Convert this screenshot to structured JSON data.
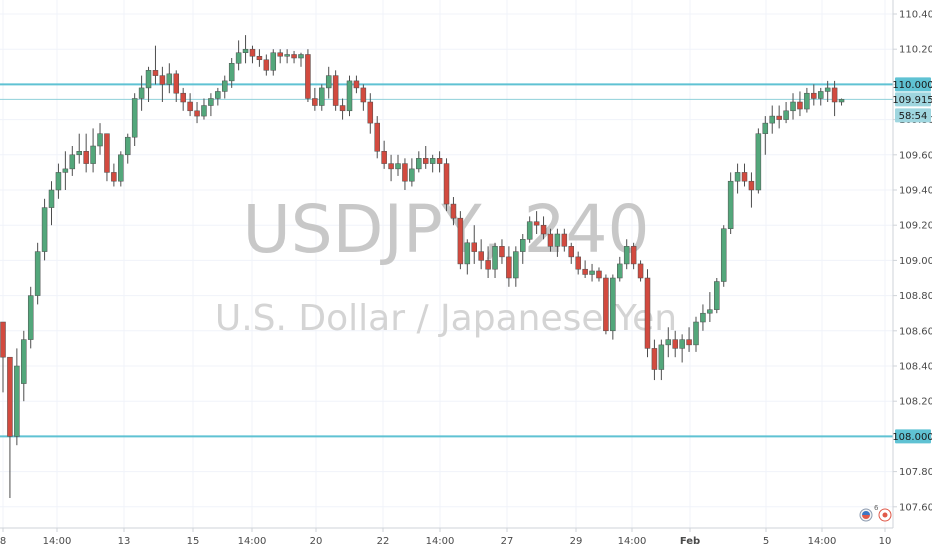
{
  "chart_data": {
    "type": "candlestick",
    "symbol_watermark": "USDJPY, 240",
    "description_watermark": "U.S. Dollar / Japanese Yen",
    "y_axis": {
      "ylim": [
        107.55,
        110.42
      ],
      "ticks": [
        "110.400",
        "110.200",
        "110.000",
        "109.800",
        "109.600",
        "109.400",
        "109.200",
        "109.000",
        "108.800",
        "108.600",
        "108.400",
        "108.200",
        "107.800",
        "107.600"
      ]
    },
    "x_axis": {
      "ticks": [
        {
          "label": "8",
          "bold": false
        },
        {
          "label": "14:00",
          "bold": false
        },
        {
          "label": "13",
          "bold": false
        },
        {
          "label": "15",
          "bold": false
        },
        {
          "label": "14:00",
          "bold": false
        },
        {
          "label": "20",
          "bold": false
        },
        {
          "label": "22",
          "bold": false
        },
        {
          "label": "14:00",
          "bold": false
        },
        {
          "label": "27",
          "bold": false
        },
        {
          "label": "29",
          "bold": false
        },
        {
          "label": "14:00",
          "bold": false
        },
        {
          "label": "Feb",
          "bold": true
        },
        {
          "label": "5",
          "bold": false
        },
        {
          "label": "14:00",
          "bold": false
        },
        {
          "label": "10",
          "bold": false
        }
      ]
    },
    "horizontal_levels": [
      {
        "value": 110.0,
        "label": "110.000",
        "color": "#5fc2d3"
      },
      {
        "value": 108.0,
        "label": "108.000",
        "color": "#5fc2d3"
      }
    ],
    "current_price": {
      "value": 109.915,
      "label": "109.915",
      "countdown": "58:54"
    },
    "colors": {
      "up": "#53a77b",
      "down": "#d24a3f",
      "wick": "#4d4d4d",
      "level": "#5fc2d3"
    },
    "candles": [
      [
        108.65,
        108.65,
        108.25,
        108.45
      ],
      [
        108.45,
        108.45,
        107.65,
        108.0
      ],
      [
        108.0,
        108.5,
        107.95,
        108.4
      ],
      [
        108.3,
        108.6,
        108.2,
        108.55
      ],
      [
        108.55,
        108.85,
        108.5,
        108.8
      ],
      [
        108.8,
        109.1,
        108.75,
        109.05
      ],
      [
        109.05,
        109.35,
        109.0,
        109.3
      ],
      [
        109.3,
        109.45,
        109.2,
        109.4
      ],
      [
        109.4,
        109.55,
        109.35,
        109.5
      ],
      [
        109.5,
        109.62,
        109.4,
        109.52
      ],
      [
        109.52,
        109.65,
        109.48,
        109.6
      ],
      [
        109.6,
        109.72,
        109.55,
        109.62
      ],
      [
        109.62,
        109.72,
        109.5,
        109.55
      ],
      [
        109.55,
        109.75,
        109.5,
        109.65
      ],
      [
        109.65,
        109.78,
        109.6,
        109.72
      ],
      [
        109.72,
        109.72,
        109.45,
        109.5
      ],
      [
        109.5,
        109.55,
        109.42,
        109.45
      ],
      [
        109.45,
        109.62,
        109.42,
        109.6
      ],
      [
        109.6,
        109.72,
        109.55,
        109.7
      ],
      [
        109.7,
        109.95,
        109.65,
        109.92
      ],
      [
        109.92,
        110.05,
        109.85,
        109.98
      ],
      [
        109.98,
        110.1,
        109.9,
        110.08
      ],
      [
        110.08,
        110.22,
        110.0,
        110.05
      ],
      [
        110.05,
        110.1,
        109.9,
        110.0
      ],
      [
        110.0,
        110.12,
        109.95,
        110.06
      ],
      [
        110.06,
        110.08,
        109.9,
        109.95
      ],
      [
        109.95,
        109.98,
        109.85,
        109.9
      ],
      [
        109.9,
        109.95,
        109.82,
        109.85
      ],
      [
        109.85,
        109.9,
        109.78,
        109.82
      ],
      [
        109.82,
        109.92,
        109.8,
        109.88
      ],
      [
        109.88,
        109.95,
        109.82,
        109.92
      ],
      [
        109.92,
        109.98,
        109.88,
        109.96
      ],
      [
        109.96,
        110.05,
        109.92,
        110.02
      ],
      [
        110.02,
        110.15,
        109.98,
        110.12
      ],
      [
        110.12,
        110.25,
        110.08,
        110.18
      ],
      [
        110.18,
        110.28,
        110.12,
        110.2
      ],
      [
        110.2,
        110.22,
        110.12,
        110.16
      ],
      [
        110.16,
        110.2,
        110.1,
        110.14
      ],
      [
        110.14,
        110.17,
        110.05,
        110.08
      ],
      [
        110.08,
        110.2,
        110.05,
        110.18
      ],
      [
        110.18,
        110.2,
        110.12,
        110.16
      ],
      [
        110.16,
        110.2,
        110.12,
        110.17
      ],
      [
        110.17,
        110.19,
        110.12,
        110.15
      ],
      [
        110.15,
        110.18,
        110.1,
        110.17
      ],
      [
        110.17,
        110.2,
        109.9,
        109.92
      ],
      [
        109.92,
        109.98,
        109.85,
        109.88
      ],
      [
        109.88,
        110.0,
        109.85,
        109.98
      ],
      [
        109.98,
        110.1,
        109.92,
        110.05
      ],
      [
        110.05,
        110.08,
        109.85,
        109.88
      ],
      [
        109.88,
        109.92,
        109.8,
        109.85
      ],
      [
        109.85,
        110.05,
        109.82,
        110.02
      ],
      [
        110.02,
        110.05,
        109.95,
        109.98
      ],
      [
        109.98,
        110.0,
        109.85,
        109.9
      ],
      [
        109.9,
        109.95,
        109.72,
        109.78
      ],
      [
        109.78,
        109.82,
        109.58,
        109.62
      ],
      [
        109.62,
        109.68,
        109.52,
        109.55
      ],
      [
        109.55,
        109.6,
        109.45,
        109.52
      ],
      [
        109.52,
        109.6,
        109.48,
        109.55
      ],
      [
        109.55,
        109.58,
        109.4,
        109.45
      ],
      [
        109.45,
        109.58,
        109.42,
        109.52
      ],
      [
        109.52,
        109.62,
        109.5,
        109.58
      ],
      [
        109.58,
        109.65,
        109.52,
        109.55
      ],
      [
        109.55,
        109.6,
        109.5,
        109.58
      ],
      [
        109.58,
        109.62,
        109.5,
        109.55
      ],
      [
        109.55,
        109.58,
        109.28,
        109.32
      ],
      [
        109.32,
        109.36,
        109.2,
        109.24
      ],
      [
        109.24,
        109.28,
        108.95,
        108.98
      ],
      [
        108.98,
        109.12,
        108.92,
        109.1
      ],
      [
        109.1,
        109.2,
        108.98,
        109.05
      ],
      [
        109.05,
        109.12,
        108.95,
        109.0
      ],
      [
        109.0,
        109.08,
        108.9,
        108.95
      ],
      [
        108.95,
        109.1,
        108.9,
        109.08
      ],
      [
        109.08,
        109.12,
        108.98,
        109.02
      ],
      [
        109.02,
        109.08,
        108.85,
        108.9
      ],
      [
        108.9,
        109.08,
        108.85,
        109.05
      ],
      [
        109.05,
        109.15,
        108.98,
        109.12
      ],
      [
        109.12,
        109.25,
        109.1,
        109.22
      ],
      [
        109.22,
        109.28,
        109.15,
        109.2
      ],
      [
        109.2,
        109.25,
        109.12,
        109.15
      ],
      [
        109.15,
        109.18,
        109.05,
        109.08
      ],
      [
        109.08,
        109.18,
        109.02,
        109.15
      ],
      [
        109.15,
        109.18,
        109.05,
        109.08
      ],
      [
        109.08,
        109.1,
        108.98,
        109.02
      ],
      [
        109.02,
        109.05,
        108.92,
        108.95
      ],
      [
        108.95,
        109.0,
        108.9,
        108.92
      ],
      [
        108.92,
        108.98,
        108.88,
        108.94
      ],
      [
        108.94,
        108.96,
        108.88,
        108.9
      ],
      [
        108.9,
        108.92,
        108.58,
        108.6
      ],
      [
        108.6,
        108.92,
        108.55,
        108.9
      ],
      [
        108.9,
        109.02,
        108.88,
        108.98
      ],
      [
        108.98,
        109.12,
        108.95,
        109.08
      ],
      [
        109.08,
        109.1,
        108.95,
        108.98
      ],
      [
        108.98,
        109.0,
        108.88,
        108.9
      ],
      [
        108.9,
        108.95,
        108.45,
        108.5
      ],
      [
        108.5,
        108.55,
        108.32,
        108.38
      ],
      [
        108.38,
        108.55,
        108.32,
        108.52
      ],
      [
        108.52,
        108.62,
        108.45,
        108.55
      ],
      [
        108.55,
        108.6,
        108.45,
        108.5
      ],
      [
        108.5,
        108.58,
        108.42,
        108.55
      ],
      [
        108.55,
        108.62,
        108.48,
        108.52
      ],
      [
        108.52,
        108.68,
        108.48,
        108.65
      ],
      [
        108.65,
        108.75,
        108.6,
        108.7
      ],
      [
        108.7,
        108.82,
        108.65,
        108.72
      ],
      [
        108.72,
        108.9,
        108.7,
        108.88
      ],
      [
        108.88,
        109.2,
        108.85,
        109.18
      ],
      [
        109.18,
        109.5,
        109.15,
        109.45
      ],
      [
        109.45,
        109.55,
        109.38,
        109.5
      ],
      [
        109.5,
        109.55,
        109.42,
        109.45
      ],
      [
        109.45,
        109.5,
        109.3,
        109.4
      ],
      [
        109.4,
        109.75,
        109.38,
        109.72
      ],
      [
        109.72,
        109.82,
        109.6,
        109.78
      ],
      [
        109.78,
        109.88,
        109.72,
        109.82
      ],
      [
        109.82,
        109.88,
        109.75,
        109.8
      ],
      [
        109.8,
        109.9,
        109.78,
        109.85
      ],
      [
        109.85,
        109.95,
        109.8,
        109.9
      ],
      [
        109.9,
        109.96,
        109.82,
        109.86
      ],
      [
        109.86,
        109.98,
        109.84,
        109.95
      ],
      [
        109.95,
        110.0,
        109.88,
        109.92
      ],
      [
        109.92,
        109.98,
        109.88,
        109.96
      ],
      [
        109.96,
        110.02,
        109.9,
        109.98
      ],
      [
        109.98,
        110.02,
        109.82,
        109.9
      ],
      [
        109.9,
        109.92,
        109.88,
        109.915
      ]
    ]
  }
}
